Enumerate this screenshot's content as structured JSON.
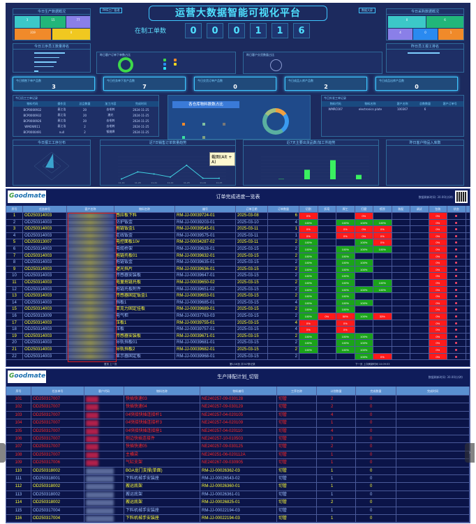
{
  "dashboard": {
    "title": "运营大数据智能可视化平台",
    "left_button": "PMS工厂管理",
    "right_button": "数据大屏",
    "wip_label": "在制工单数",
    "wip_digits": [
      "0",
      "0",
      "0",
      "1",
      "1",
      "6"
    ],
    "panels": {
      "today_production": "今日生产数据概况",
      "today_staff_rank": "今日工序员工数量排名",
      "yesterday_order_share": "昨日客户订单下单数占比",
      "yesterday_delivery_share": "昨日客户交货数量占比",
      "today_purchase": "今日采购数据概况",
      "today_staff_report": "昨日员工报工排名",
      "staff_orders": "今日员工工单记录",
      "warehouse_share": "各仓库物料数数占比",
      "outsource_orders": "今日外发工单记录",
      "process_dist": "今日报工工序分布",
      "sales_trend": "近7日销售订单数量趋势",
      "ship_trend": "近7天主要出货品数/加工件趋势",
      "customer_inbound": "昨日客户物品入库数"
    },
    "production_tiles": [
      {
        "value": "3",
        "color": "#3cc8c8"
      },
      {
        "value": "15",
        "color": "#22b67a"
      },
      {
        "value": "77",
        "color": "#8a7fe8"
      },
      {
        "value": "319",
        "color": "#f08a2a"
      },
      {
        "value": "0",
        "color": "#f0c820"
      }
    ],
    "purchase_tiles": [
      {
        "value": "0",
        "color": "#3cc8c8"
      },
      {
        "value": "6",
        "color": "#22b67a"
      },
      {
        "value": "4",
        "color": "#8a7fe8"
      },
      {
        "value": "0",
        "color": "#2a8af0"
      },
      {
        "value": "1",
        "color": "#f08a2a"
      }
    ],
    "kpis": [
      {
        "label": "今日销售下单产品数",
        "value": "3"
      },
      {
        "label": "今日任务单下发产品数",
        "value": "7"
      },
      {
        "label": "今日交货订单产品数",
        "value": "0"
      },
      {
        "label": "今日成品入库产品数",
        "value": "2"
      },
      {
        "label": "今日成品出库产品数",
        "value": "0"
      }
    ],
    "staff_table": {
      "headers": [
        "物料代码",
        "操作员",
        "总品数量",
        "加工内容",
        "完成时间"
      ],
      "rows": [
        [
          "BCP0000932",
          "袁江浩",
          "20",
          "去毛刺",
          "2024-11-25"
        ],
        [
          "BCP0000932",
          "袁江浩",
          "20",
          "激光",
          "2024-11-25"
        ],
        [
          "BCP0000926",
          "袁江浩",
          "20",
          "去毛刺",
          "2024-11-25"
        ],
        [
          "WMOW011",
          "袁江浩",
          "2",
          "去毛刺",
          "2024-11-25"
        ],
        [
          "BCP0000491",
          "null",
          "2",
          "钣抛焊",
          "2024-11-25"
        ]
      ]
    },
    "outsource_table": {
      "headers": [
        "物料代码",
        "物料名称",
        "客户名称",
        "总数数量",
        "客户订单号"
      ],
      "rows": [
        [
          "WMRC007",
          "electronics plate",
          "100367",
          "6",
          ""
        ]
      ]
    },
    "screenshot_tooltip": "截图(Alt + A)",
    "line_series": [
      300,
      5800,
      4200,
      1800,
      11000,
      900,
      800
    ],
    "line_categories": [
      "11-19",
      "11-20",
      "11-21",
      "11-22",
      "11-23",
      "11-24",
      "11-25"
    ],
    "bar_series": [
      0.05,
      1.5,
      3,
      0.7
    ],
    "accent": "#3fc6ff"
  },
  "progress": {
    "title": "订单完成进度一览表",
    "refresh": "数据刷新时间: 30.00(分钟)",
    "headers": [
      "序号",
      "任务单号",
      "客户名称",
      "物料名称",
      "编号",
      "订单日期",
      "订单数量",
      "切割",
      "折弯",
      "焊工",
      "打磨",
      "喷涂",
      "装配",
      "调试",
      "包装",
      "状态"
    ],
    "rows": [
      [
        "1",
        "OD250314003",
        "感应板下料",
        "RM-JJ-00039724-01",
        "2025-03-08",
        "6",
        [
          "0%",
          "",
          "",
          "0%",
          "",
          "",
          "",
          "0%"
        ]
      ],
      [
        "2",
        "OD250314003",
        "防护钣金",
        "RM-JJ-00039203-01",
        "2025-03-10",
        "4",
        [
          "100%",
          "",
          "100%",
          "100%",
          "100%",
          "",
          "",
          "0%"
        ]
      ],
      [
        "3",
        "OD250314003",
        "拖链钣金1",
        "RM-JJ-00039545-01",
        "2025-03-11",
        "1",
        [
          "0%",
          "",
          "0%",
          "0%",
          "0%",
          "",
          "",
          "0%"
        ]
      ],
      [
        "4",
        "OD250314003",
        "走线钣金",
        "RM-JJ-00039575-01",
        "2025-03-11",
        "1",
        [
          "0%",
          "",
          "0%",
          "0%",
          "0%",
          "",
          "",
          "0%"
        ]
      ],
      [
        "5",
        "OD250313007",
        "电控面板10#",
        "RM-JJ-00034287-02",
        "2025-03-11",
        "2",
        [
          "100%",
          "",
          "",
          "100%",
          "0%",
          "",
          "",
          "0%"
        ]
      ],
      [
        "6",
        "OD250314003",
        "电缆桥架",
        "RM-JJ-00039628-01",
        "2025-03-15",
        "2",
        [
          "100%",
          "",
          "100%",
          "100%",
          "100%",
          "",
          "",
          "0%"
        ]
      ],
      [
        "7",
        "OD250314003",
        "拖链托板01",
        "RM-JJ-00039632-01",
        "2025-03-15",
        "2",
        [
          "100%",
          "",
          "100%",
          "",
          "",
          "",
          "",
          "0%"
        ]
      ],
      [
        "8",
        "OD250314003",
        "拖链钣金",
        "RM-JJ-00039635-01",
        "2025-03-15",
        "2",
        [
          "100%",
          "",
          "100%",
          "100%",
          "",
          "",
          "",
          "0%"
        ]
      ],
      [
        "9",
        "OD250314003",
        "遮光挡片",
        "RM-JJ-00039636-01",
        "2025-03-15",
        "2",
        [
          "100%",
          "",
          "100%",
          "100%",
          "",
          "",
          "",
          "0%"
        ]
      ],
      [
        "10",
        "OD250314003",
        "传感器安装板",
        "RM-JJ-00039647-01",
        "2025-03-15",
        "2",
        [
          "100%",
          "",
          "100%",
          "",
          "",
          "",
          "",
          "0%"
        ]
      ],
      [
        "11",
        "OD250314003",
        "电量拖链托板",
        "RM-JJ-00039650-02",
        "2025-03-15",
        "2",
        [
          "100%",
          "",
          "100%",
          "",
          "100%",
          "",
          "",
          "0%"
        ]
      ],
      [
        "12",
        "OD250314003",
        "拖链托板附件",
        "RM-JJ-00039651-02",
        "2025-03-15",
        "2",
        [
          "100%",
          "",
          "100%",
          "100%",
          "100%",
          "",
          "",
          "0%"
        ]
      ],
      [
        "13",
        "OD250314003",
        "传感器固定钣金1",
        "RM-JJ-00039653-01",
        "2025-03-15",
        "2",
        [
          "100%",
          "",
          "100%",
          "",
          "",
          "",
          "",
          "0%"
        ]
      ],
      [
        "14",
        "OD250314003",
        "挡板1",
        "RM-JJ-00039685-01",
        "2025-03-15",
        "4",
        [
          "100%",
          "",
          "100%",
          "100%",
          "",
          "",
          "",
          "0%"
        ]
      ],
      [
        "15",
        "OD250314003",
        "亚克力固定挂板",
        "RM-JJ-00039689-01",
        "2025-03-15",
        "2",
        [
          "100%",
          "",
          "100%",
          "",
          "",
          "",
          "",
          "0%"
        ]
      ],
      [
        "16",
        "OD250313009",
        "电气柜",
        "RM-JJ-00037763-03",
        "2025-03-15",
        "2",
        [
          "100%",
          "0%",
          "50%",
          "100%",
          "33%",
          "",
          "",
          "0%"
        ]
      ],
      [
        "17",
        "OD250314003",
        "压板1",
        "RM-JJ-00039755-01",
        "2025-03-15",
        "4",
        [
          "0%",
          "",
          "0%",
          "",
          "",
          "",
          "",
          "0%"
        ]
      ],
      [
        "18",
        "OD250314003",
        "压板",
        "RM-JJ-00039757-01",
        "2025-03-15",
        "4",
        [
          "0%",
          "",
          "0%",
          "",
          "",
          "",
          "",
          "0%"
        ]
      ],
      [
        "19",
        "OD250314003",
        "传感器安装板",
        "RM-JJ-00039671-01",
        "2025-03-15",
        "2",
        [
          "100%",
          "",
          "100%",
          "100%",
          "",
          "",
          "",
          "0%"
        ]
      ],
      [
        "20",
        "OD250314003",
        "导轨挡板01",
        "RM-JJ-00039681-01",
        "2025-03-15",
        "2",
        [
          "100%",
          "",
          "100%",
          "100%",
          "",
          "",
          "",
          "0%"
        ]
      ],
      [
        "21",
        "OD250314003",
        "导轨挡板2",
        "RM-JJ-00039682-01",
        "2025-03-15",
        "2",
        [
          "100%",
          "",
          "100%",
          "100%",
          "",
          "",
          "",
          "0%"
        ]
      ],
      [
        "22",
        "OD250314003",
        "显示器固定板",
        "RM-JJ-00039968-01",
        "2025-03-15",
        "2",
        [
          "",
          "",
          "",
          "100%",
          "0%",
          "",
          "",
          "0%"
        ]
      ]
    ],
    "footer": {
      "prev": "首页  上一页",
      "page": "第1/16页 共347条记录",
      "next": "下一页  上次刷新时间 10:09:53"
    }
  },
  "schedule": {
    "title": "生产排配计划_切管",
    "refresh": "数据刷新时间: 30.00(分钟)",
    "headers": [
      "序号",
      "任务单号",
      "客户代码",
      "物料名称",
      "物料编号",
      "工序名称",
      "计划数量",
      "完成数量",
      "完成时间"
    ],
    "rows": [
      [
        "101",
        "OD250317007",
        "快插快速03",
        "NE240257-09-030128",
        "切管",
        "2",
        "0",
        "",
        true
      ],
      [
        "102",
        "OD250317007",
        "快插快速04",
        "NE240257-09-030129",
        "切管",
        "2",
        "0",
        "",
        true
      ],
      [
        "103",
        "OD250317007",
        "04快接快插连接杆1",
        "NE240257-04-020105",
        "切管",
        "4",
        "0",
        "",
        true
      ],
      [
        "104",
        "OD250317007",
        "04快接快插连接杆3",
        "NE240257-04-020109",
        "切管",
        "1",
        "0",
        "",
        true
      ],
      [
        "105",
        "OD250317007",
        "04快接快插连接座1",
        "NE240257-04-020110",
        "切管",
        "4",
        "0",
        "",
        true
      ],
      [
        "106",
        "OD250317007",
        "侧边快插连接件",
        "NE240257-10-010503",
        "切管",
        "3",
        "0",
        "",
        true
      ],
      [
        "107",
        "OD250317007",
        "快插快速05",
        "NE240257-09-030125",
        "切管",
        "2",
        "0",
        "",
        true
      ],
      [
        "108",
        "OD250317007",
        "主横梁",
        "NE240251-06-020112A",
        "切管",
        "1",
        "0",
        "",
        true
      ],
      [
        "109",
        "OD250317006",
        "气缸支架",
        "NE240267-09-030905",
        "切管",
        "1",
        "0",
        "",
        true
      ],
      [
        "110",
        "OD250318002",
        "BGA龙门支撑(单面)",
        "RM-JJ-00026362-03",
        "切管",
        "1",
        "0",
        "",
        false
      ],
      [
        "111",
        "OD250318001",
        "下料机械手安装座",
        "RM-JJ-00026543-02",
        "切管",
        "1",
        "0",
        "",
        false
      ],
      [
        "112",
        "OD250318002",
        "搬运底架",
        "RM-JJ-00026360-01",
        "切管",
        "1",
        "0",
        "",
        false
      ],
      [
        "113",
        "OD250318002",
        "搬运底架",
        "RM-JJ-00026361-01",
        "切管",
        "1",
        "0",
        "",
        false
      ],
      [
        "114",
        "OD250318002",
        "搬运底架",
        "RM-JJ-00026825-01",
        "切管",
        "2",
        "0",
        "",
        false
      ],
      [
        "115",
        "OD250317004",
        "下料机械手安装座",
        "RM-JJ-00022194-03",
        "切管",
        "1",
        "0",
        "",
        false
      ],
      [
        "116",
        "OD250317004",
        "下料机械手安装座",
        "RM-JJ-00022194-03",
        "切管",
        "1",
        "0",
        "",
        false
      ]
    ]
  },
  "logo": {
    "text": "Goodmate"
  },
  "colors": {
    "odd_row_text": "#ffff3a",
    "even_row_text": "#9fc0ff",
    "late_row_text": "#ff2a2a",
    "done": "#1aa31a",
    "zero": "#ff1a1a",
    "status_dot": "#ff4a6a"
  }
}
